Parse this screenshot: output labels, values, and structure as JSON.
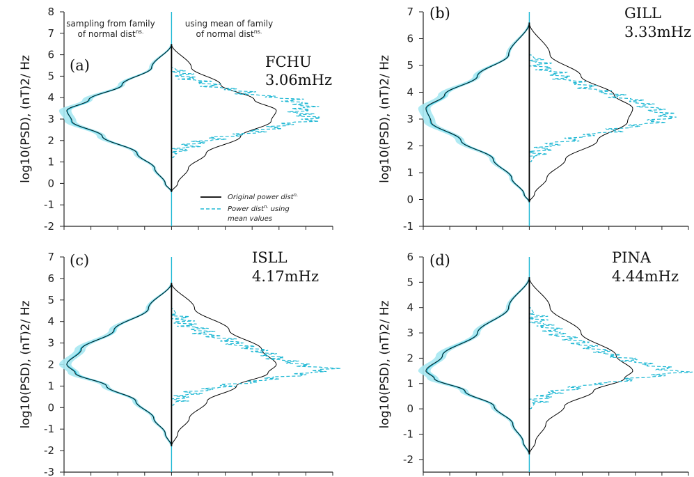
{
  "chart_data": [
    {
      "type": "line",
      "panel": "(a)",
      "station": "FCHU",
      "frequency": "3.06mHz",
      "ylabel": "log10(PSD), (nT)2/ Hz",
      "ylim": [
        -2,
        8
      ],
      "yticks": [
        "-2",
        "-1",
        "0",
        "1",
        "2",
        "3",
        "4",
        "5",
        "6",
        "7",
        "8"
      ],
      "annotations": [
        "sampling from family",
        "of normal dist",
        "ns.",
        "using mean of family",
        "of normal dist",
        "ns."
      ],
      "legend": [
        "Original power dist",
        "n.",
        "Power dist",
        "n.",
        "using",
        "mean values"
      ],
      "series": [
        {
          "name": "Original power distn.",
          "y": [
            -0.4,
            0,
            0.7,
            1.4,
            2.2,
            2.9,
            3.4,
            3.9,
            4.6,
            5.4,
            6.5
          ],
          "density": [
            0,
            0.06,
            0.16,
            0.33,
            0.66,
            0.95,
            1,
            0.79,
            0.47,
            0.19,
            0
          ]
        },
        {
          "name": "Power distn. using mean values",
          "y": [
            1.2,
            1.5,
            1.8,
            2.1,
            2.4,
            2.7,
            3.0,
            3.3,
            3.6,
            3.9,
            4.2,
            4.6,
            5.0,
            5.4
          ],
          "density": [
            0.02,
            0.06,
            0.18,
            0.42,
            0.8,
            1.05,
            1.36,
            1.22,
            1.28,
            1.15,
            0.72,
            0.36,
            0.12,
            0.03
          ]
        }
      ]
    },
    {
      "type": "line",
      "panel": "(b)",
      "station": "GILL",
      "frequency": "3.33mHz",
      "ylabel": "log10(PSD), (nT)2/ Hz",
      "ylim": [
        -1,
        7
      ],
      "yticks": [
        "-1",
        "0",
        "1",
        "2",
        "3",
        "4",
        "5",
        "6",
        "7"
      ],
      "series": [
        {
          "name": "Original power distn.",
          "y": [
            -0.1,
            0.2,
            0.8,
            1.5,
            2.2,
            2.9,
            3.4,
            3.9,
            4.6,
            5.4,
            6.6
          ],
          "density": [
            0,
            0.05,
            0.17,
            0.35,
            0.66,
            0.95,
            1,
            0.82,
            0.5,
            0.2,
            0
          ]
        },
        {
          "name": "Power distn. using mean values",
          "y": [
            1.4,
            1.7,
            2.0,
            2.3,
            2.6,
            2.9,
            3.1,
            3.3,
            3.6,
            3.9,
            4.2,
            4.6,
            5.0,
            5.4
          ],
          "density": [
            0.02,
            0.06,
            0.18,
            0.46,
            0.84,
            1.2,
            1.35,
            1.24,
            1.08,
            0.82,
            0.56,
            0.3,
            0.11,
            0.03
          ]
        }
      ]
    },
    {
      "type": "line",
      "panel": "(c)",
      "station": "ISLL",
      "frequency": "4.17mHz",
      "ylabel": "log10(PSD), (nT)2/ Hz",
      "ylim": [
        -3,
        7
      ],
      "yticks": [
        "-3",
        "-2",
        "-1",
        "0",
        "1",
        "2",
        "3",
        "4",
        "5",
        "6",
        "7"
      ],
      "series": [
        {
          "name": "Original power distn.",
          "y": [
            -1.8,
            -1.2,
            -0.5,
            0.3,
            1.0,
            1.6,
            2.0,
            2.7,
            3.6,
            4.6,
            5.8
          ],
          "density": [
            0,
            0.06,
            0.17,
            0.34,
            0.62,
            0.92,
            1,
            0.86,
            0.55,
            0.22,
            0
          ]
        },
        {
          "name": "Power distn. using mean values",
          "y": [
            0.1,
            0.4,
            0.7,
            1.0,
            1.3,
            1.6,
            1.8,
            2.0,
            2.3,
            2.6,
            3.0,
            3.5,
            4.0,
            4.6
          ],
          "density": [
            0.02,
            0.06,
            0.2,
            0.5,
            0.9,
            1.3,
            1.5,
            1.22,
            1.0,
            0.86,
            0.6,
            0.3,
            0.1,
            0.02
          ]
        }
      ]
    },
    {
      "type": "line",
      "panel": "(d)",
      "station": "PINA",
      "frequency": "4.44mHz",
      "ylabel": "log10(PSD), (nT)2/ Hz",
      "ylim": [
        -2.5,
        6
      ],
      "yticks": [
        "-2",
        "-1",
        "0",
        "1",
        "2",
        "3",
        "4",
        "5",
        "6"
      ],
      "series": [
        {
          "name": "Original power distn.",
          "y": [
            -1.8,
            -1.3,
            -0.6,
            0.1,
            0.7,
            1.2,
            1.5,
            2.1,
            3.0,
            4.0,
            5.2
          ],
          "density": [
            0,
            0.06,
            0.16,
            0.34,
            0.62,
            0.92,
            1,
            0.84,
            0.5,
            0.2,
            0
          ]
        },
        {
          "name": "Power distn. using mean values",
          "y": [
            0.0,
            0.3,
            0.6,
            0.9,
            1.1,
            1.3,
            1.45,
            1.6,
            1.9,
            2.2,
            2.6,
            3.0,
            3.5,
            4.0
          ],
          "density": [
            0.02,
            0.06,
            0.2,
            0.5,
            0.88,
            1.2,
            1.46,
            1.3,
            1.0,
            0.74,
            0.5,
            0.26,
            0.08,
            0.02
          ]
        }
      ]
    }
  ],
  "colors": {
    "original": "#000000",
    "mean": "#1fb8d4",
    "band": "#a6e8f2",
    "axis": "#222222"
  }
}
